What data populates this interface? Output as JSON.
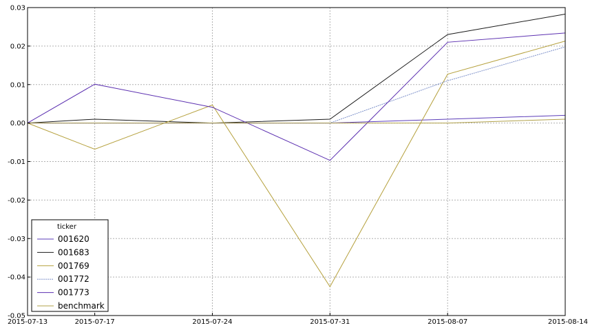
{
  "chart_data": {
    "type": "line",
    "x": [
      "2015-07-13",
      "2015-07-17",
      "2015-07-24",
      "2015-07-31",
      "2015-08-07",
      "2015-08-14"
    ],
    "xticks": [
      "2015-07-13",
      "2015-07-17",
      "2015-07-24",
      "2015-07-31",
      "2015-08-07",
      "2015-08-14"
    ],
    "yticks": [
      "0.03",
      "0.02",
      "0.01",
      "0.00",
      "-0.01",
      "-0.02",
      "-0.03",
      "-0.04",
      "-0.05"
    ],
    "ylim": [
      -0.05,
      0.03
    ],
    "grid": true,
    "legend": {
      "title": "ticker",
      "placement": "bottom-left"
    },
    "series": [
      {
        "name": "001620",
        "color": "#5a3bb8",
        "dashed": false,
        "values": [
          0.0,
          0.0,
          0.0,
          0.0,
          0.001,
          0.002
        ]
      },
      {
        "name": "001683",
        "color": "#1a1a1a",
        "dashed": false,
        "values": [
          0.0,
          0.001,
          0.0,
          0.001,
          0.023,
          0.0283
        ]
      },
      {
        "name": "001769",
        "color": "#b5a03c",
        "dashed": false,
        "values": [
          0.0,
          -0.0068,
          0.0047,
          -0.0425,
          0.0127,
          0.0213
        ]
      },
      {
        "name": "001772",
        "color": "#7b8fc9",
        "dashed": true,
        "values": [
          0.0,
          0.0,
          0.0,
          0.0,
          0.011,
          0.0198
        ]
      },
      {
        "name": "001773",
        "color": "#5b2fb0",
        "dashed": false,
        "values": [
          0.0,
          0.0101,
          0.0041,
          -0.0097,
          0.021,
          0.0234
        ]
      },
      {
        "name": "benchmark",
        "color": "#b0a048",
        "dashed": false,
        "values": [
          0.0,
          0.0,
          0.0,
          0.0,
          0.0,
          0.001
        ]
      }
    ]
  }
}
